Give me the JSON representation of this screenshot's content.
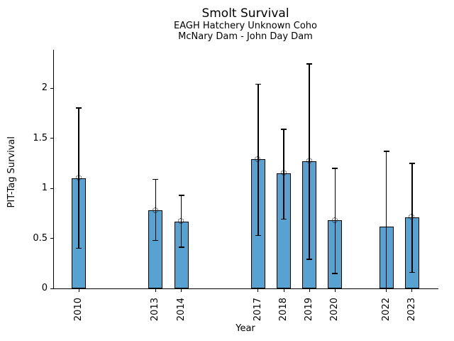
{
  "chart_data": {
    "type": "bar",
    "title": "Smolt Survival",
    "subtitle1": "EAGH Hatchery Unknown Coho",
    "subtitle2": "McNary Dam - John Day Dam",
    "xlabel": "Year",
    "ylabel": "PIT-Tag Survival",
    "xlim": [
      2009.03,
      2024.03
    ],
    "ylim": [
      0,
      2.383
    ],
    "yticks": [
      0,
      0.5,
      1,
      1.5,
      2
    ],
    "ytick_labels": [
      "0",
      "0.5",
      "1",
      "1.5",
      "2"
    ],
    "grid": false,
    "legend": null,
    "bar_color": "#58a2d1",
    "edge_color": "#000000",
    "error_bar_color": "#000000",
    "marker_style": "dotted-open-circle",
    "categories": [
      2010,
      2013,
      2014,
      2017,
      2018,
      2019,
      2020,
      2022,
      2023
    ],
    "values": [
      1.1,
      0.78,
      0.67,
      1.29,
      1.15,
      1.27,
      0.68,
      0.62,
      0.71
    ],
    "error_low": [
      0.4,
      0.48,
      0.41,
      0.53,
      0.69,
      0.29,
      0.15,
      0.0,
      0.16
    ],
    "error_high": [
      1.8,
      1.09,
      0.93,
      2.04,
      1.59,
      2.24,
      1.2,
      1.37,
      1.25
    ],
    "marker_at_top": [
      true,
      true,
      true,
      true,
      true,
      true,
      true,
      false,
      true
    ]
  }
}
